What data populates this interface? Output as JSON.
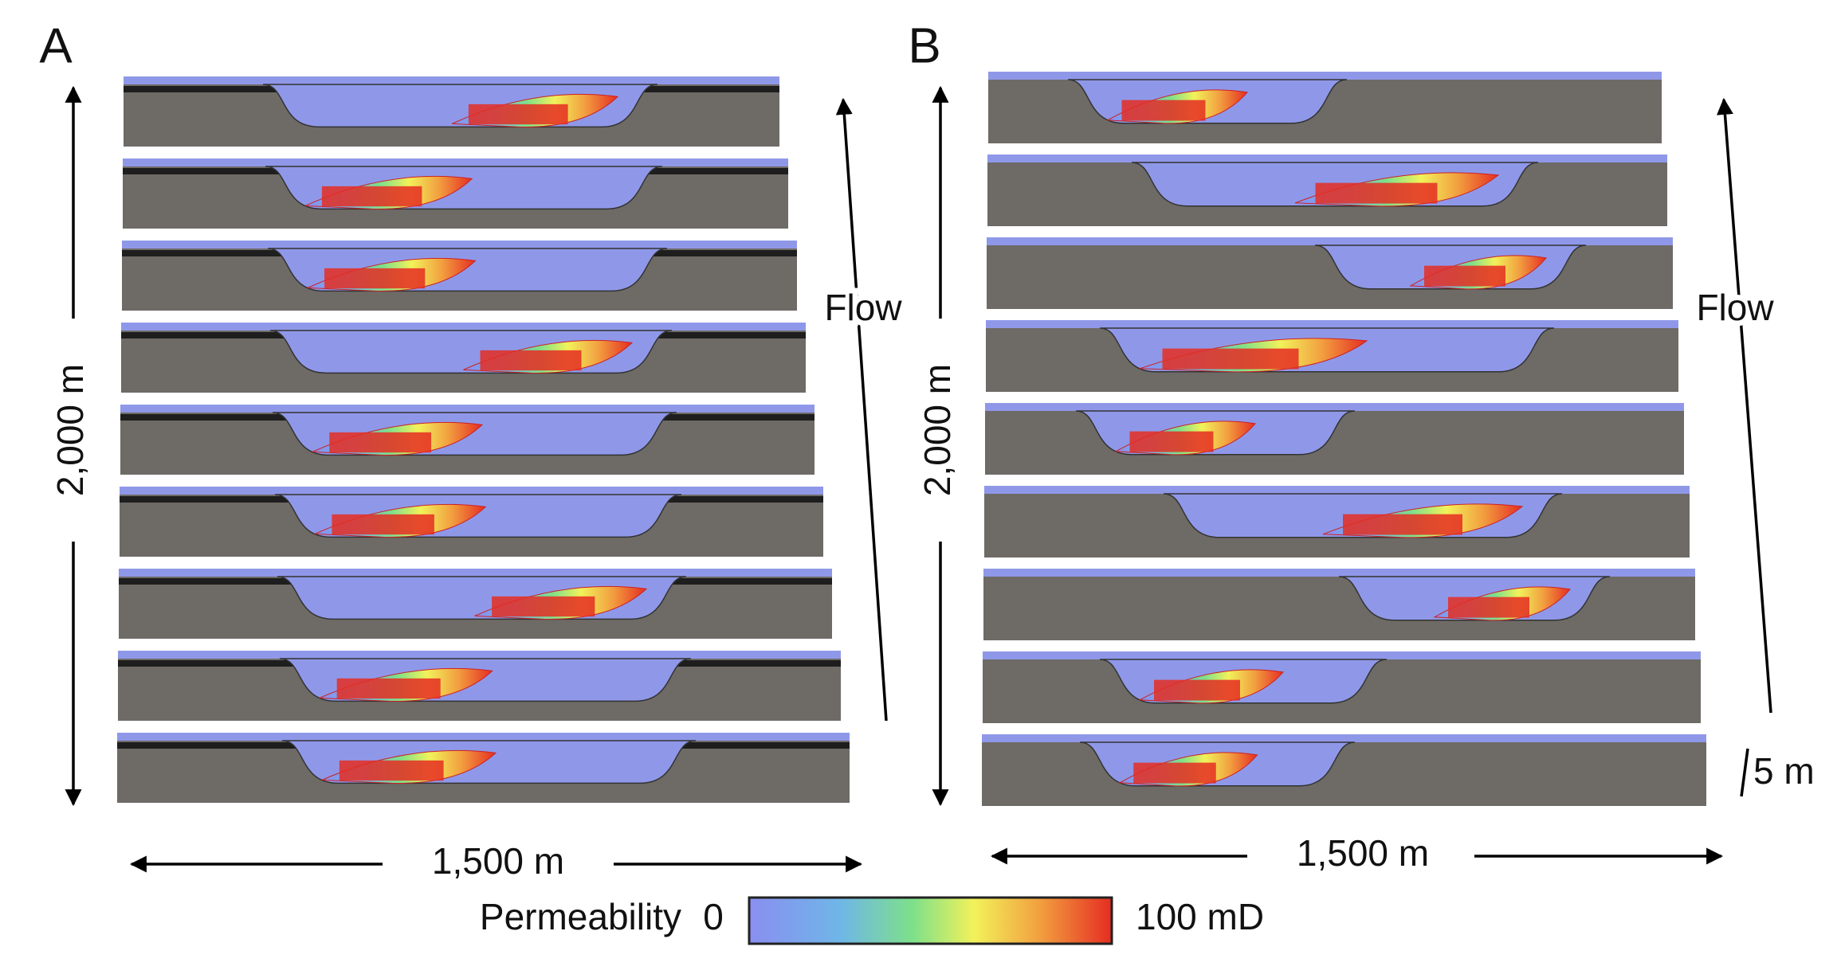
{
  "panels": [
    {
      "label": "A",
      "height_label": "2,000 m",
      "width_label": "1,500 m",
      "flow_label": "Flow"
    },
    {
      "label": "B",
      "height_label": "2,000 m",
      "width_label": "1,500 m",
      "flow_label": "Flow",
      "scale_label": "5 m"
    }
  ],
  "colorbar": {
    "title": "Permeability",
    "min_label": "0",
    "max_label": "100 mD"
  }
}
